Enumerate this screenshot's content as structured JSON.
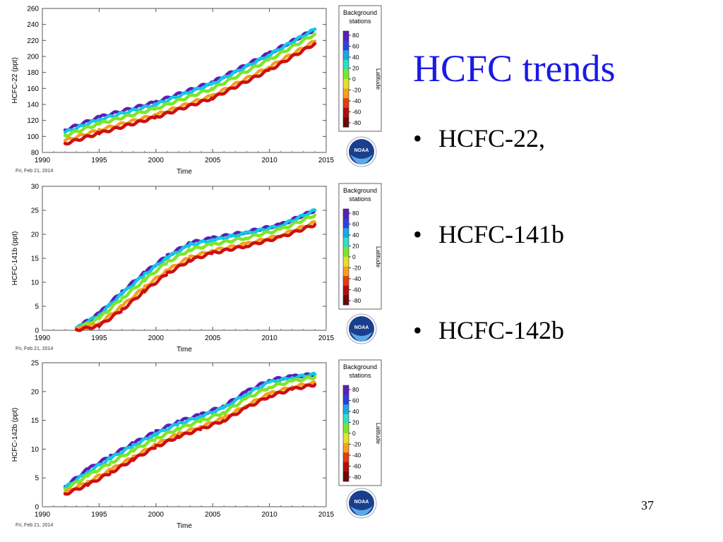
{
  "slide": {
    "title": "HCFC trends",
    "bullets": [
      {
        "label": "HCFC-22,"
      },
      {
        "label": "HCFC-141b"
      },
      {
        "label": "HCFC-142b"
      }
    ],
    "page_number": "37"
  },
  "icons": {
    "logo": "noaa-logo-icon",
    "bullet": "bullet-dot"
  },
  "chart_data": [
    {
      "type": "scatter",
      "ylabel": "HCFC-22 (ppt)",
      "xlabel": "Time",
      "date_stamp": "Fri, Feb 21, 2014",
      "xlim": [
        1990,
        2015
      ],
      "ylim": [
        80,
        260
      ],
      "xticks": [
        1990,
        1995,
        2000,
        2005,
        2010,
        2015
      ],
      "yticks": [
        80,
        100,
        120,
        140,
        160,
        180,
        200,
        220,
        240,
        260
      ],
      "series": [
        {
          "color": "#5a1fb8",
          "x": [
            1992,
            1995,
            2000,
            2005,
            2010,
            2014
          ],
          "y": [
            108,
            124,
            143,
            168,
            204,
            234
          ]
        },
        {
          "color": "#10c8e8",
          "x": [
            1992,
            1995,
            2000,
            2005,
            2010,
            2014
          ],
          "y": [
            105,
            121,
            140,
            166,
            202,
            234
          ]
        },
        {
          "color": "#7de62a",
          "x": [
            1992,
            1995,
            2000,
            2005,
            2010,
            2014
          ],
          "y": [
            101,
            116,
            135,
            160,
            196,
            228
          ]
        },
        {
          "color": "#f5a020",
          "x": [
            1992,
            1995,
            2000,
            2005,
            2010,
            2014
          ],
          "y": [
            95,
            108,
            127,
            151,
            187,
            219
          ]
        },
        {
          "color": "#cc1010",
          "x": [
            1992,
            1995,
            2000,
            2005,
            2010,
            2014
          ],
          "y": [
            91,
            104,
            124,
            148,
            183,
            216
          ]
        }
      ],
      "legend": {
        "title_line1": "Background",
        "title_line2": "stations",
        "label": "Latitude",
        "ticks": [
          "80",
          "60",
          "40",
          "20",
          "0",
          "-20",
          "-40",
          "-60",
          "-80"
        ],
        "placement": "right"
      }
    },
    {
      "type": "scatter",
      "ylabel": "HCFC-141b (ppt)",
      "xlabel": "Time",
      "date_stamp": "Fri, Feb 21, 2014",
      "xlim": [
        1990,
        2015
      ],
      "ylim": [
        0,
        30
      ],
      "xticks": [
        1990,
        1995,
        2000,
        2005,
        2010,
        2015
      ],
      "yticks": [
        0,
        5,
        10,
        15,
        20,
        25,
        30
      ],
      "series": [
        {
          "color": "#5a1fb8",
          "x": [
            1993,
            1995,
            1997,
            1999,
            2001,
            2003,
            2005,
            2008,
            2011,
            2014
          ],
          "y": [
            0.5,
            3.5,
            8.0,
            12.0,
            15.5,
            18.2,
            19.2,
            20.5,
            22.0,
            25.0
          ]
        },
        {
          "color": "#10c8e8",
          "x": [
            1993,
            1995,
            1997,
            1999,
            2001,
            2003,
            2005,
            2008,
            2011,
            2014
          ],
          "y": [
            0.4,
            3.2,
            7.6,
            11.6,
            15.2,
            17.8,
            18.8,
            20.2,
            21.8,
            25.0
          ]
        },
        {
          "color": "#7de62a",
          "x": [
            1993,
            1995,
            1997,
            1999,
            2001,
            2003,
            2005,
            2008,
            2011,
            2014
          ],
          "y": [
            0.3,
            2.5,
            6.6,
            10.5,
            14.2,
            16.8,
            17.9,
            19.3,
            21.0,
            24.0
          ]
        },
        {
          "color": "#f5a020",
          "x": [
            1993,
            1995,
            1997,
            1999,
            2001,
            2003,
            2005,
            2008,
            2011,
            2014
          ],
          "y": [
            0.2,
            1.4,
            5.0,
            9.0,
            12.5,
            15.2,
            16.6,
            18.0,
            19.8,
            22.5
          ]
        },
        {
          "color": "#cc1010",
          "x": [
            1993,
            1995,
            1997,
            1999,
            2001,
            2003,
            2005,
            2008,
            2011,
            2014
          ],
          "y": [
            0.1,
            0.9,
            4.2,
            8.2,
            11.8,
            14.6,
            16.1,
            17.6,
            19.4,
            22.0
          ]
        }
      ],
      "legend": {
        "title_line1": "Background",
        "title_line2": "stations",
        "label": "Latitude",
        "ticks": [
          "80",
          "60",
          "40",
          "20",
          "0",
          "-20",
          "-40",
          "-60",
          "-80"
        ],
        "placement": "right"
      }
    },
    {
      "type": "scatter",
      "ylabel": "HCFC-142b (ppt)",
      "xlabel": "Time",
      "date_stamp": "Fri, Feb 21, 2014",
      "xlim": [
        1990,
        2015
      ],
      "ylim": [
        0,
        25
      ],
      "xticks": [
        1990,
        1995,
        2000,
        2005,
        2010,
        2015
      ],
      "yticks": [
        0,
        5,
        10,
        15,
        20,
        25
      ],
      "series": [
        {
          "color": "#5a1fb8",
          "x": [
            1992,
            1994,
            1996,
            1998,
            2000,
            2002,
            2004,
            2006,
            2008,
            2010,
            2012,
            2014
          ],
          "y": [
            3.5,
            6.5,
            8.8,
            11.0,
            13.0,
            14.8,
            16.0,
            17.5,
            20.0,
            22.0,
            22.6,
            23.0
          ]
        },
        {
          "color": "#10c8e8",
          "x": [
            1992,
            1994,
            1996,
            1998,
            2000,
            2002,
            2004,
            2006,
            2008,
            2010,
            2012,
            2014
          ],
          "y": [
            3.3,
            6.0,
            8.4,
            10.6,
            12.6,
            14.4,
            15.7,
            17.2,
            19.6,
            21.6,
            22.4,
            23.0
          ]
        },
        {
          "color": "#7de62a",
          "x": [
            1992,
            1994,
            1996,
            1998,
            2000,
            2002,
            2004,
            2006,
            2008,
            2010,
            2012,
            2014
          ],
          "y": [
            3.0,
            5.4,
            7.6,
            9.8,
            11.8,
            13.6,
            14.9,
            16.4,
            18.8,
            20.8,
            21.8,
            22.5
          ]
        },
        {
          "color": "#f5a020",
          "x": [
            1992,
            1994,
            1996,
            1998,
            2000,
            2002,
            2004,
            2006,
            2008,
            2010,
            2012,
            2014
          ],
          "y": [
            2.5,
            4.3,
            6.4,
            8.6,
            10.8,
            12.6,
            13.9,
            15.4,
            17.6,
            19.6,
            20.8,
            21.5
          ]
        },
        {
          "color": "#cc1010",
          "x": [
            1992,
            1994,
            1996,
            1998,
            2000,
            2002,
            2004,
            2006,
            2008,
            2010,
            2012,
            2014
          ],
          "y": [
            2.2,
            3.8,
            5.9,
            8.2,
            10.4,
            12.2,
            13.5,
            15.0,
            17.2,
            19.2,
            20.4,
            21.2
          ]
        }
      ],
      "legend": {
        "title_line1": "Background",
        "title_line2": "stations",
        "label": "Latitude",
        "ticks": [
          "80",
          "60",
          "40",
          "20",
          "0",
          "-20",
          "-40",
          "-60",
          "-80"
        ],
        "placement": "right"
      }
    }
  ]
}
